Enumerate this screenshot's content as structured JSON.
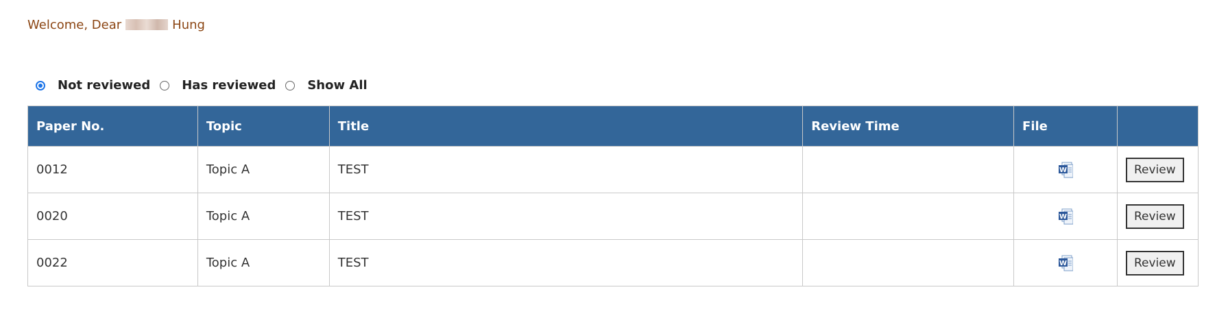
{
  "welcome": {
    "prefix": "Welcome, Dear",
    "suffix": "Hung"
  },
  "filters": [
    {
      "label": "Not reviewed",
      "checked": true
    },
    {
      "label": "Has reviewed",
      "checked": false
    },
    {
      "label": "Show All",
      "checked": false
    }
  ],
  "table": {
    "headers": [
      "Paper No.",
      "Topic",
      "Title",
      "Review Time",
      "File",
      ""
    ],
    "rows": [
      {
        "paper_no": "0012",
        "topic": "Topic A",
        "title": "TEST",
        "review_time": "",
        "file_icon": "word-document-icon",
        "action": "Review"
      },
      {
        "paper_no": "0020",
        "topic": "Topic A",
        "title": "TEST",
        "review_time": "",
        "file_icon": "word-document-icon",
        "action": "Review"
      },
      {
        "paper_no": "0022",
        "topic": "Topic A",
        "title": "TEST",
        "review_time": "",
        "file_icon": "word-document-icon",
        "action": "Review"
      }
    ]
  },
  "colors": {
    "header_bg": "#336699",
    "welcome": "#8b4513",
    "radio_accent": "#1a73e8"
  }
}
